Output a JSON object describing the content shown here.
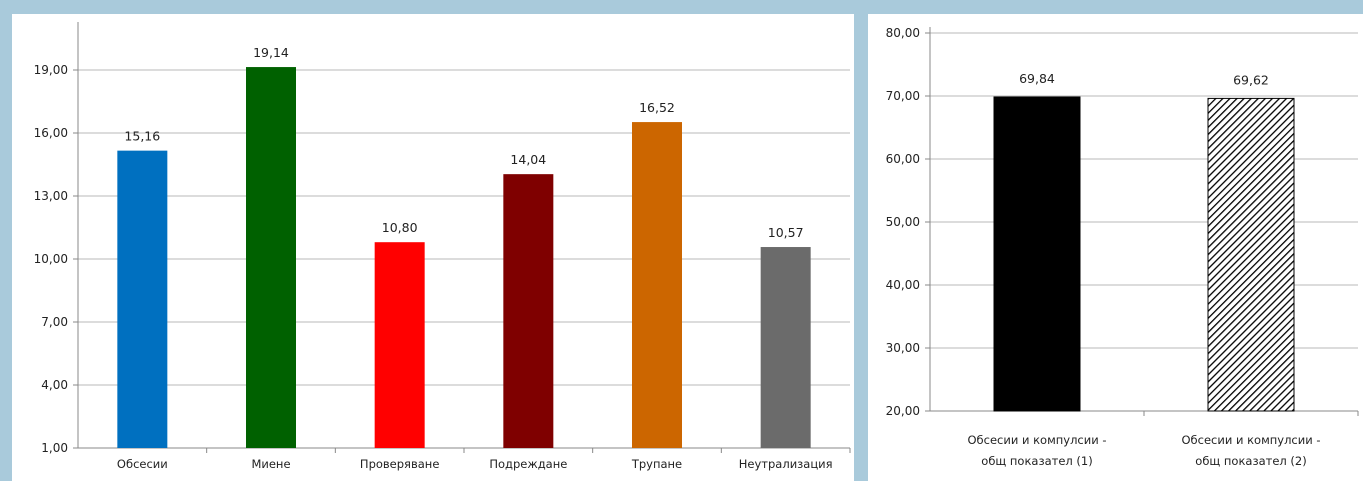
{
  "chart_data": [
    {
      "type": "bar",
      "title": "",
      "xlabel": "",
      "ylabel": "",
      "categories": [
        "Обсесии",
        "Миене",
        "Проверяване",
        "Подреждане",
        "Трупане",
        "Неутрализация"
      ],
      "values": [
        15.16,
        19.14,
        10.8,
        14.04,
        16.52,
        10.57
      ],
      "value_labels": [
        "15,16",
        "19,14",
        "10,80",
        "14,04",
        "16,52",
        "10,57"
      ],
      "colors": [
        "#0070c0",
        "#006100",
        "#ff0000",
        "#7f0000",
        "#cc6600",
        "#6b6b6b"
      ],
      "ylim": [
        1,
        21
      ],
      "yticks": [
        1,
        4,
        7,
        10,
        13,
        16,
        19
      ],
      "ytick_labels": [
        "1,00",
        "4,00",
        "7,00",
        "10,00",
        "13,00",
        "16,00",
        "19,00"
      ],
      "grid": true,
      "legend": "none"
    },
    {
      "type": "bar",
      "title": "",
      "xlabel": "",
      "ylabel": "",
      "categories": [
        [
          "Обсесии и компулсии -",
          "общ показател  (1)"
        ],
        [
          "Обсесии и компулсии -",
          "общ показател (2)"
        ]
      ],
      "values": [
        69.84,
        69.62
      ],
      "value_labels": [
        "69,84",
        "69,62"
      ],
      "fills": [
        "solid-black",
        "diagonal-hatch-black"
      ],
      "ylim": [
        20,
        80
      ],
      "yticks": [
        20,
        30,
        40,
        50,
        60,
        70,
        80
      ],
      "ytick_labels": [
        "20,00",
        "30,00",
        "40,00",
        "50,00",
        "60,00",
        "70,00",
        "80,00"
      ],
      "grid": true,
      "legend": "none"
    }
  ]
}
